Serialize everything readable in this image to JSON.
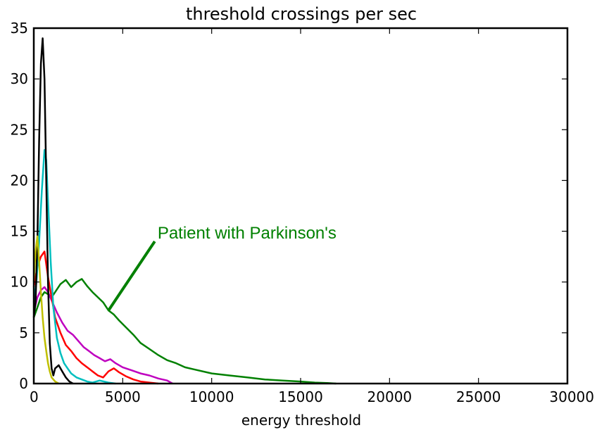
{
  "chart_data": {
    "type": "line",
    "title": "threshold crossings per sec",
    "xlabel": "energy threshold",
    "ylabel": "",
    "xlim": [
      0,
      30000
    ],
    "ylim": [
      0,
      35
    ],
    "xticks": [
      0,
      5000,
      10000,
      15000,
      20000,
      25000,
      30000
    ],
    "yticks": [
      0,
      5,
      10,
      15,
      20,
      25,
      30,
      35
    ],
    "grid": false,
    "annotation": {
      "text": "Patient with Parkinson's",
      "color": "#008000",
      "points_to": [
        4200,
        7.2
      ],
      "text_at": [
        6800,
        14.0
      ]
    },
    "series": [
      {
        "color": "#008000",
        "x": [
          0,
          200,
          400,
          600,
          800,
          1000,
          1200,
          1500,
          1800,
          2100,
          2400,
          2700,
          3000,
          3300,
          3600,
          3900,
          4200,
          4500,
          4800,
          5200,
          5600,
          6000,
          6500,
          7000,
          7500,
          8000,
          8500,
          9000,
          10000,
          11000,
          12000,
          13000,
          14000,
          15000,
          15800,
          16500,
          17000
        ],
        "y": [
          6.5,
          7.5,
          8.5,
          9.0,
          8.8,
          8.5,
          9.0,
          9.8,
          10.2,
          9.5,
          10.0,
          10.3,
          9.6,
          9.0,
          8.5,
          8.0,
          7.2,
          6.8,
          6.2,
          5.5,
          4.8,
          4.0,
          3.4,
          2.8,
          2.3,
          2.0,
          1.6,
          1.4,
          1.0,
          0.8,
          0.6,
          0.4,
          0.3,
          0.2,
          0.1,
          0.05,
          0
        ]
      },
      {
        "color": "#bf00bf",
        "x": [
          0,
          200,
          400,
          600,
          800,
          1000,
          1300,
          1600,
          1900,
          2200,
          2500,
          2800,
          3100,
          3400,
          3700,
          4000,
          4300,
          4600,
          5000,
          5500,
          6000,
          6500,
          7000,
          7500,
          7800
        ],
        "y": [
          7.0,
          8.5,
          9.2,
          9.5,
          9.0,
          8.2,
          7.0,
          6.0,
          5.2,
          4.8,
          4.2,
          3.6,
          3.2,
          2.8,
          2.5,
          2.2,
          2.4,
          2.0,
          1.6,
          1.3,
          1.0,
          0.8,
          0.5,
          0.3,
          0
        ]
      },
      {
        "color": "#ff0000",
        "x": [
          0,
          200,
          400,
          600,
          800,
          1000,
          1200,
          1500,
          1800,
          2100,
          2400,
          2700,
          3000,
          3300,
          3600,
          3900,
          4200,
          4500,
          4800,
          5200,
          5600,
          6000,
          6500,
          7000
        ],
        "y": [
          9.5,
          11.5,
          12.5,
          13.0,
          10.5,
          8.5,
          6.5,
          5.0,
          3.8,
          3.2,
          2.5,
          2.0,
          1.6,
          1.2,
          0.8,
          0.6,
          1.2,
          1.5,
          1.1,
          0.7,
          0.4,
          0.2,
          0.1,
          0
        ]
      },
      {
        "color": "#00bfbf",
        "x": [
          0,
          150,
          300,
          450,
          600,
          700,
          800,
          950,
          1100,
          1300,
          1500,
          1700,
          1900,
          2100,
          2400,
          2700,
          3000,
          3300,
          3700,
          4200,
          4600
        ],
        "y": [
          8.0,
          10.0,
          14.0,
          19.0,
          23.0,
          22.0,
          18.0,
          12.0,
          7.5,
          4.5,
          3.0,
          2.0,
          1.5,
          1.0,
          0.6,
          0.4,
          0.2,
          0.1,
          0.3,
          0.1,
          0
        ]
      },
      {
        "color": "#000000",
        "x": [
          0,
          100,
          200,
          300,
          400,
          500,
          600,
          700,
          800,
          900,
          1000,
          1100,
          1200,
          1400,
          1600,
          1800,
          2000,
          2200
        ],
        "y": [
          6.5,
          8.0,
          14.0,
          24.0,
          31.5,
          34.0,
          30.0,
          20.0,
          10.0,
          4.0,
          1.5,
          0.8,
          1.5,
          1.8,
          1.2,
          0.6,
          0.2,
          0
        ]
      },
      {
        "color": "#bfbf00",
        "x": [
          0,
          100,
          200,
          300,
          400,
          500,
          600,
          700,
          800,
          900,
          1000,
          1200,
          1400
        ],
        "y": [
          10.0,
          13.0,
          14.5,
          12.0,
          9.0,
          6.5,
          4.5,
          3.2,
          2.0,
          1.2,
          0.6,
          0.2,
          0
        ]
      }
    ]
  }
}
